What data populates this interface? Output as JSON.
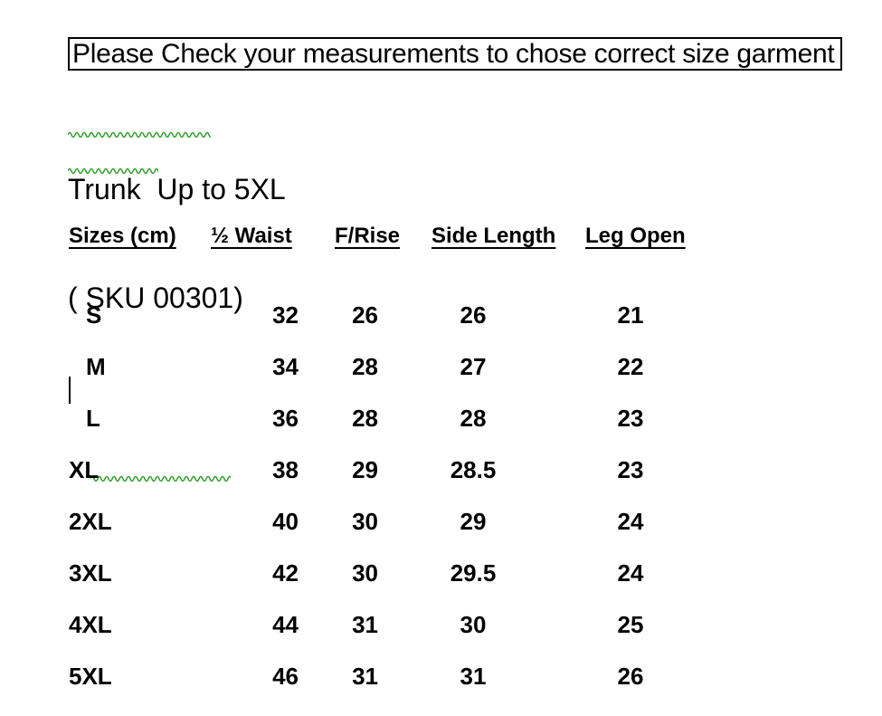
{
  "notice": {
    "text": "Please Check your measurements to chose correct size garment"
  },
  "heading": {
    "line1": "Trunk  Up to 5XL",
    "line2": "( SKU 00301)"
  },
  "table": {
    "headers": [
      "Sizes (cm)",
      "½ Waist",
      "F/Rise",
      "Side Length",
      "Leg Open"
    ],
    "rows": [
      {
        "size": "S",
        "waist": "32",
        "rise": "26",
        "side": "26",
        "leg": "21"
      },
      {
        "size": "M",
        "waist": "34",
        "rise": "28",
        "side": "27",
        "leg": "22"
      },
      {
        "size": "L",
        "waist": "36",
        "rise": "28",
        "side": "28",
        "leg": "23"
      },
      {
        "size": "XL",
        "waist": "38",
        "rise": "29",
        "side": "28.5",
        "leg": "23"
      },
      {
        "size": "2XL",
        "waist": "40",
        "rise": "30",
        "side": "29",
        "leg": "24"
      },
      {
        "size": "3XL",
        "waist": "42",
        "rise": "30",
        "side": "29.5",
        "leg": "24"
      },
      {
        "size": "4XL",
        "waist": "44",
        "rise": "31",
        "side": "30",
        "leg": "25"
      },
      {
        "size": "5XL",
        "waist": "46",
        "rise": "31",
        "side": "31",
        "leg": "26"
      }
    ]
  },
  "colors": {
    "text": "#000000",
    "background": "#ffffff",
    "spellcheck_squiggle": "#33a02c"
  }
}
